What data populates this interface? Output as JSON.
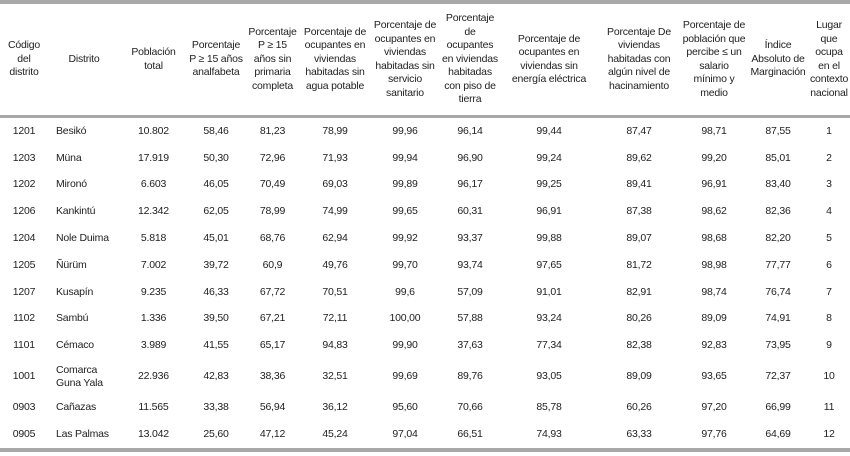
{
  "headers": [
    "Código del distrito",
    "Distrito",
    "Población total",
    "Porcentaje P ≥ 15 años analfabeta",
    "Porcentaje P ≥ 15 años sin primaria completa",
    "Porcentaje de ocupantes en viviendas habitadas sin agua potable",
    "Porcentaje de ocupantes en viviendas habitadas sin servicio sanitario",
    "Porcentaje de ocupantes en viviendas habitadas con piso de tierra",
    "Porcentaje de ocupantes en viviendas sin energía eléctrica",
    "Porcentaje De viviendas habitadas con algún nivel de hacinamiento",
    "Porcentaje de población que percibe ≤ un salario mínimo y medio",
    "Índice Absoluto de Marginación",
    "Lugar que ocupa en el contexto nacional"
  ],
  "rows": [
    [
      "1201",
      "Besikó",
      "10.802",
      "58,46",
      "81,23",
      "78,99",
      "99,96",
      "96,14",
      "99,44",
      "87,47",
      "98,71",
      "87,55",
      "1"
    ],
    [
      "1203",
      "Müna",
      "17.919",
      "50,30",
      "72,96",
      "71,93",
      "99,94",
      "96,90",
      "99,24",
      "89,62",
      "99,20",
      "85,01",
      "2"
    ],
    [
      "1202",
      "Mironó",
      "6.603",
      "46,05",
      "70,49",
      "69,03",
      "99,89",
      "96,17",
      "99,25",
      "89,41",
      "96,91",
      "83,40",
      "3"
    ],
    [
      "1206",
      "Kankintú",
      "12.342",
      "62,05",
      "78,99",
      "74,99",
      "99,65",
      "60,31",
      "96,91",
      "87,38",
      "98,62",
      "82,36",
      "4"
    ],
    [
      "1204",
      "Nole Duima",
      "5.818",
      "45,01",
      "68,76",
      "62,94",
      "99,92",
      "93,37",
      "99,88",
      "89,07",
      "98,68",
      "82,20",
      "5"
    ],
    [
      "1205",
      "Ñürüm",
      "7.002",
      "39,72",
      "60,9",
      "49,76",
      "99,70",
      "93,74",
      "97,65",
      "81,72",
      "98,98",
      "77,77",
      "6"
    ],
    [
      "1207",
      "Kusapín",
      "9.235",
      "46,33",
      "67,72",
      "70,51",
      "99,6",
      "57,09",
      "91,01",
      "82,91",
      "98,74",
      "76,74",
      "7"
    ],
    [
      "1102",
      "Sambú",
      "1.336",
      "39,50",
      "67,21",
      "72,11",
      "100,00",
      "57,88",
      "93,24",
      "80,26",
      "89,09",
      "74,91",
      "8"
    ],
    [
      "1101",
      "Cémaco",
      "3.989",
      "41,55",
      "65,17",
      "94,83",
      "99,90",
      "37,63",
      "77,34",
      "82,38",
      "92,83",
      "73,95",
      "9"
    ],
    [
      "1001",
      "Comarca Guna Yala",
      "22.936",
      "42,83",
      "38,36",
      "32,51",
      "99,69",
      "89,76",
      "93,05",
      "89,09",
      "93,65",
      "72,37",
      "10"
    ],
    [
      "0903",
      "Cañazas",
      "11.565",
      "33,38",
      "56,94",
      "36,12",
      "95,60",
      "70,66",
      "85,78",
      "60,26",
      "97,20",
      "66,99",
      "11"
    ],
    [
      "0905",
      "Las Palmas",
      "13.042",
      "25,60",
      "47,12",
      "45,24",
      "97,04",
      "66,51",
      "74,93",
      "63,33",
      "97,76",
      "64,69",
      "12"
    ]
  ]
}
